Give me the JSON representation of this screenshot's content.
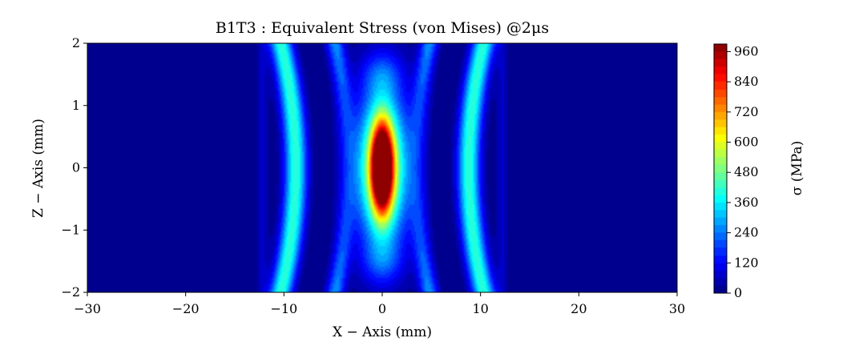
{
  "chart_data": {
    "type": "heatmap",
    "title": "B1T3 :  Equivalent Stress (von Mises) @2μs",
    "xlabel": "X − Axis (mm)",
    "ylabel": "Z − Axis (mm)",
    "colorbar_label": "σ (MPa)",
    "xlim": [
      -30,
      30
    ],
    "ylim": [
      -2,
      2
    ],
    "x_ticks": [
      -30,
      -20,
      -10,
      0,
      10,
      20,
      30
    ],
    "y_ticks": [
      -2,
      -1,
      0,
      1,
      2
    ],
    "colorbar_ticks": [
      0,
      120,
      240,
      360,
      480,
      600,
      720,
      840,
      960
    ],
    "colorbar_range": [
      0,
      990
    ],
    "colormap": "jet",
    "levels": 33,
    "field_features": [
      {
        "kind": "peak",
        "x": 0,
        "z": 0,
        "sigma": 975
      },
      {
        "kind": "side-band",
        "x": -8.8,
        "sigma": 420
      },
      {
        "kind": "side-band",
        "x": 8.8,
        "sigma": 420
      },
      {
        "kind": "background",
        "sigma": 0
      }
    ]
  }
}
